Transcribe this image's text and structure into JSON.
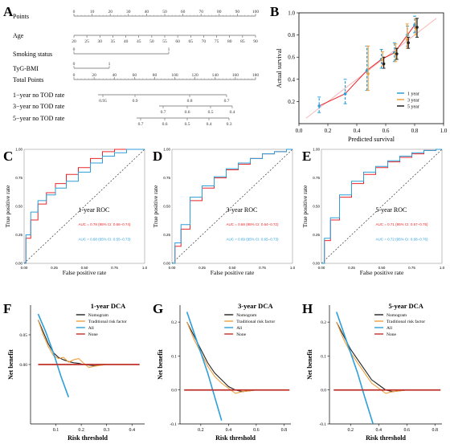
{
  "panel_letters": [
    "A",
    "B",
    "C",
    "D",
    "E",
    "F",
    "G",
    "H"
  ],
  "nomogram": {
    "rows": [
      {
        "label": "Points",
        "ticks": [
          "0",
          "10",
          "20",
          "30",
          "40",
          "50",
          "60",
          "70",
          "80",
          "90",
          "100"
        ]
      },
      {
        "label": "Age",
        "ticks": [
          "20",
          "25",
          "30",
          "35",
          "40",
          "45",
          "50",
          "55",
          "60",
          "65",
          "70",
          "75",
          "80",
          "85",
          "90"
        ]
      },
      {
        "label": "Smoking status",
        "ticks": [
          "0",
          "1"
        ]
      },
      {
        "label": "TyG-BMI",
        "ticks": [
          "0",
          "1"
        ]
      },
      {
        "label": "Total Points",
        "ticks": [
          "0",
          "20",
          "40",
          "60",
          "80",
          "100",
          "120",
          "140",
          "160",
          "180"
        ]
      },
      {
        "label": "1−year no TOD rate",
        "ticks": [
          "0.95",
          "0.9",
          "0.8",
          "0.7"
        ]
      },
      {
        "label": "3−year no TOD rate",
        "ticks": [
          "0.7",
          "0.6",
          "0.5",
          "0.4"
        ]
      },
      {
        "label": "5−year no TOD rate",
        "ticks": [
          "0.7",
          "0.6",
          "0.5",
          "0.4",
          "0.3"
        ]
      }
    ]
  },
  "colors": {
    "red": "#e8262a",
    "blue": "#2d9fd9",
    "orange": "#f0a040",
    "black": "#222222",
    "darkred": "#c0302a",
    "diag": "#f4b8b8"
  },
  "chart_data": [
    {
      "panel": "B",
      "type": "line",
      "xlabel": "Predicted survival",
      "ylabel": "Actual survival",
      "xlim": [
        0.0,
        1.0
      ],
      "ylim": [
        0.0,
        1.0
      ],
      "xticks": [
        "0.0",
        "0.2",
        "0.4",
        "0.6",
        "0.8",
        "1.0"
      ],
      "yticks": [
        "0.2",
        "0.4",
        "0.6",
        "0.8",
        "1.0"
      ],
      "legend": [
        "1 year",
        "3 year",
        "5 year"
      ],
      "legend_position": "bottom-right",
      "series": [
        {
          "name": "1 year",
          "x": [
            0.14,
            0.32,
            0.47,
            0.57,
            0.66,
            0.75,
            0.8
          ],
          "y": [
            0.16,
            0.27,
            0.48,
            0.58,
            0.64,
            0.8,
            0.89
          ],
          "err": [
            [
              0.1,
              0.24
            ],
            [
              0.18,
              0.4
            ],
            [
              0.3,
              0.7
            ],
            [
              0.5,
              0.67
            ],
            [
              0.56,
              0.73
            ],
            [
              0.7,
              0.88
            ],
            [
              0.82,
              0.97
            ]
          ]
        },
        {
          "name": "3 year",
          "x": [
            0.47,
            0.57,
            0.66,
            0.74,
            0.8
          ],
          "y": [
            0.45,
            0.58,
            0.63,
            0.76,
            0.86
          ],
          "err": [
            [
              0.3,
              0.7
            ],
            [
              0.52,
              0.65
            ],
            [
              0.56,
              0.72
            ],
            [
              0.68,
              0.9
            ],
            [
              0.8,
              0.95
            ]
          ]
        },
        {
          "name": "5 year",
          "x": [
            0.57,
            0.66,
            0.74,
            0.8
          ],
          "y": [
            0.54,
            0.63,
            0.73,
            0.87
          ],
          "err": [
            [
              0.5,
              0.6
            ],
            [
              0.58,
              0.68
            ],
            [
              0.68,
              0.78
            ],
            [
              0.78,
              0.95
            ]
          ]
        }
      ]
    },
    {
      "panel": "C",
      "type": "line",
      "title": "1-year ROC",
      "xlabel": "False positive rate",
      "ylabel": "True positive rate",
      "xlim": [
        0,
        1
      ],
      "ylim": [
        0,
        1
      ],
      "xticks": [
        "0.00",
        "0.25",
        "0.50",
        "0.75",
        "1.0"
      ],
      "yticks": [
        "0.00",
        "0.25",
        "0.50",
        "0.75",
        "1.00"
      ],
      "annotations": [
        "AUC = 0.78 (95% CI: 0.66−0.74)",
        "AUC = 0.68 (95% CI: 0.55−0.73)"
      ],
      "series": [
        {
          "name": "AUC = 0.78 (95% CI: 0.66−0.74)",
          "x": [
            0,
            0.03,
            0.08,
            0.15,
            0.22,
            0.3,
            0.4,
            0.5,
            0.6,
            0.7,
            0.8,
            0.9,
            1
          ],
          "y": [
            0,
            0.22,
            0.38,
            0.52,
            0.62,
            0.7,
            0.78,
            0.84,
            0.92,
            0.98,
            1,
            1,
            1
          ]
        },
        {
          "name": "AUC = 0.68 (95% CI: 0.55−0.73)",
          "x": [
            0,
            0.03,
            0.08,
            0.15,
            0.22,
            0.3,
            0.4,
            0.5,
            0.6,
            0.7,
            0.8,
            0.9,
            1
          ],
          "y": [
            0,
            0.25,
            0.45,
            0.55,
            0.6,
            0.66,
            0.72,
            0.8,
            0.88,
            0.94,
            0.97,
            1,
            1
          ]
        }
      ]
    },
    {
      "panel": "D",
      "type": "line",
      "title": "3-year ROC",
      "xlabel": "False positive rate",
      "ylabel": "True positive rate",
      "xlim": [
        0,
        1
      ],
      "ylim": [
        0,
        1
      ],
      "xticks": [
        "0.00",
        "0.25",
        "0.50",
        "0.75",
        "1.0"
      ],
      "yticks": [
        "0.00",
        "0.25",
        "0.50",
        "0.75",
        "1.00"
      ],
      "annotations": [
        "AUC = 0.68 (95% CI: 0.64−0.72)",
        "AUC = 0.69 (95% CI: 0.65−0.73)"
      ],
      "series": [
        {
          "name": "AUC = 0.68 (95% CI: 0.64−0.72)",
          "x": [
            0,
            0.05,
            0.1,
            0.2,
            0.3,
            0.4,
            0.5,
            0.6,
            0.7,
            0.8,
            0.9,
            1
          ],
          "y": [
            0,
            0.15,
            0.3,
            0.55,
            0.66,
            0.75,
            0.82,
            0.87,
            0.92,
            0.96,
            0.98,
            1
          ]
        },
        {
          "name": "AUC = 0.69 (95% CI: 0.65−0.73)",
          "x": [
            0,
            0.05,
            0.1,
            0.2,
            0.3,
            0.4,
            0.5,
            0.6,
            0.7,
            0.8,
            0.9,
            1
          ],
          "y": [
            0,
            0.18,
            0.34,
            0.58,
            0.68,
            0.76,
            0.83,
            0.88,
            0.92,
            0.96,
            0.98,
            1
          ]
        }
      ]
    },
    {
      "panel": "E",
      "type": "line",
      "title": "5-year ROC",
      "xlabel": "False positive rate",
      "ylabel": "True positive rate",
      "xlim": [
        0,
        1
      ],
      "ylim": [
        0,
        1
      ],
      "xticks": [
        "0.00",
        "0.25",
        "0.50",
        "0.75",
        "1.0"
      ],
      "yticks": [
        "0.00",
        "0.25",
        "0.50",
        "0.75",
        "1.00"
      ],
      "annotations": [
        "AUC = 0.71 (95% CI: 0.67−0.75)",
        "AUC = 0.72 (95% CI: 0.68−0.76)"
      ],
      "series": [
        {
          "name": "AUC = 0.71 (95% CI: 0.67−0.75)",
          "x": [
            0,
            0.05,
            0.1,
            0.2,
            0.3,
            0.4,
            0.5,
            0.6,
            0.7,
            0.8,
            0.9,
            1
          ],
          "y": [
            0,
            0.2,
            0.38,
            0.58,
            0.7,
            0.78,
            0.84,
            0.89,
            0.93,
            0.96,
            0.99,
            1
          ]
        },
        {
          "name": "AUC = 0.72 (95% CI: 0.68−0.76)",
          "x": [
            0,
            0.05,
            0.1,
            0.2,
            0.3,
            0.4,
            0.5,
            0.6,
            0.7,
            0.8,
            0.9,
            1
          ],
          "y": [
            0,
            0.22,
            0.4,
            0.6,
            0.72,
            0.8,
            0.85,
            0.9,
            0.94,
            0.97,
            0.99,
            1
          ]
        }
      ]
    },
    {
      "panel": "F",
      "type": "line",
      "title": "1-year DCA",
      "xlabel": "Risk threshold",
      "ylabel": "Net benefit",
      "xlim": [
        0.0,
        0.45
      ],
      "ylim": [
        -0.1,
        0.1
      ],
      "xticks": [
        "0.1",
        "0.2",
        "0.3",
        "0.4"
      ],
      "yticks": [
        "0.05",
        "0.00"
      ],
      "legend": [
        "Nomogram",
        "Traditional risk factor",
        "All",
        "None"
      ],
      "series": [
        {
          "name": "Nomogram",
          "x": [
            0.03,
            0.05,
            0.07,
            0.09,
            0.11,
            0.13,
            0.15,
            0.17,
            0.19,
            0.21,
            0.25,
            0.3,
            0.35,
            0.42
          ],
          "y": [
            0.075,
            0.055,
            0.035,
            0.02,
            0.012,
            0.008,
            0.005,
            0.003,
            0.002,
            0.0,
            -0.002,
            0,
            0,
            0
          ]
        },
        {
          "name": "Traditional risk factor",
          "x": [
            0.03,
            0.05,
            0.07,
            0.09,
            0.11,
            0.13,
            0.15,
            0.17,
            0.19,
            0.21,
            0.23,
            0.25,
            0.3,
            0.35,
            0.42
          ],
          "y": [
            0.075,
            0.05,
            0.03,
            0.015,
            0.01,
            0.012,
            0.004,
            0.008,
            0.01,
            0.002,
            -0.005,
            -0.003,
            0,
            0,
            0
          ]
        },
        {
          "name": "All",
          "x": [
            0.03,
            0.06,
            0.09,
            0.12,
            0.15
          ],
          "y": [
            0.085,
            0.055,
            0.02,
            -0.02,
            -0.055
          ]
        },
        {
          "name": "None",
          "x": [
            0.03,
            0.43
          ],
          "y": [
            0,
            0
          ]
        }
      ]
    },
    {
      "panel": "G",
      "type": "line",
      "title": "3-year DCA",
      "xlabel": "Risk threshold",
      "ylabel": "Net benefit",
      "xlim": [
        0.05,
        0.85
      ],
      "ylim": [
        -0.1,
        0.25
      ],
      "xticks": [
        "0.2",
        "0.4",
        "0.6",
        "0.8"
      ],
      "yticks": [
        "0.2",
        "0.1",
        "0.0",
        "-0.1"
      ],
      "legend": [
        "Nomogram",
        "Traditional risk factor",
        "All",
        "None"
      ],
      "series": [
        {
          "name": "Nomogram",
          "x": [
            0.1,
            0.15,
            0.2,
            0.25,
            0.3,
            0.35,
            0.4,
            0.45,
            0.5,
            0.6,
            0.7,
            0.8
          ],
          "y": [
            0.2,
            0.16,
            0.12,
            0.08,
            0.05,
            0.03,
            0.01,
            0.0,
            -0.005,
            0,
            0,
            0
          ]
        },
        {
          "name": "Traditional risk factor",
          "x": [
            0.1,
            0.15,
            0.2,
            0.25,
            0.3,
            0.35,
            0.4,
            0.45,
            0.5,
            0.6,
            0.7,
            0.8
          ],
          "y": [
            0.2,
            0.15,
            0.11,
            0.07,
            0.04,
            0.02,
            0.005,
            -0.01,
            -0.005,
            0,
            0,
            0
          ]
        },
        {
          "name": "All",
          "x": [
            0.1,
            0.15,
            0.2,
            0.25,
            0.3,
            0.35
          ],
          "y": [
            0.23,
            0.17,
            0.11,
            0.05,
            -0.02,
            -0.09
          ]
        },
        {
          "name": "None",
          "x": [
            0.08,
            0.84
          ],
          "y": [
            0,
            0
          ]
        }
      ]
    },
    {
      "panel": "H",
      "type": "line",
      "title": "5-year DCA",
      "xlabel": "Risk threshold",
      "ylabel": "Net benefit",
      "xlim": [
        0.05,
        0.85
      ],
      "ylim": [
        -0.1,
        0.25
      ],
      "xticks": [
        "0.2",
        "0.4",
        "0.6",
        "0.8"
      ],
      "yticks": [
        "0.2",
        "0.1",
        "0.0",
        "-0.1"
      ],
      "legend": [
        "Nomogram",
        "Traditional risk factor",
        "All",
        "None"
      ],
      "series": [
        {
          "name": "Nomogram",
          "x": [
            0.1,
            0.15,
            0.2,
            0.25,
            0.3,
            0.35,
            0.4,
            0.45,
            0.5,
            0.6,
            0.7,
            0.8
          ],
          "y": [
            0.2,
            0.16,
            0.12,
            0.09,
            0.06,
            0.03,
            0.015,
            0.0,
            -0.005,
            0,
            0,
            0
          ]
        },
        {
          "name": "Traditional risk factor",
          "x": [
            0.1,
            0.15,
            0.2,
            0.25,
            0.3,
            0.35,
            0.4,
            0.45,
            0.5,
            0.6,
            0.7,
            0.8
          ],
          "y": [
            0.2,
            0.15,
            0.11,
            0.08,
            0.05,
            0.02,
            0.005,
            -0.01,
            -0.005,
            0,
            0,
            0
          ]
        },
        {
          "name": "All",
          "x": [
            0.1,
            0.15,
            0.2,
            0.25,
            0.3,
            0.36
          ],
          "y": [
            0.23,
            0.17,
            0.11,
            0.05,
            -0.02,
            -0.1
          ]
        },
        {
          "name": "None",
          "x": [
            0.08,
            0.84
          ],
          "y": [
            0,
            0
          ]
        }
      ]
    }
  ]
}
